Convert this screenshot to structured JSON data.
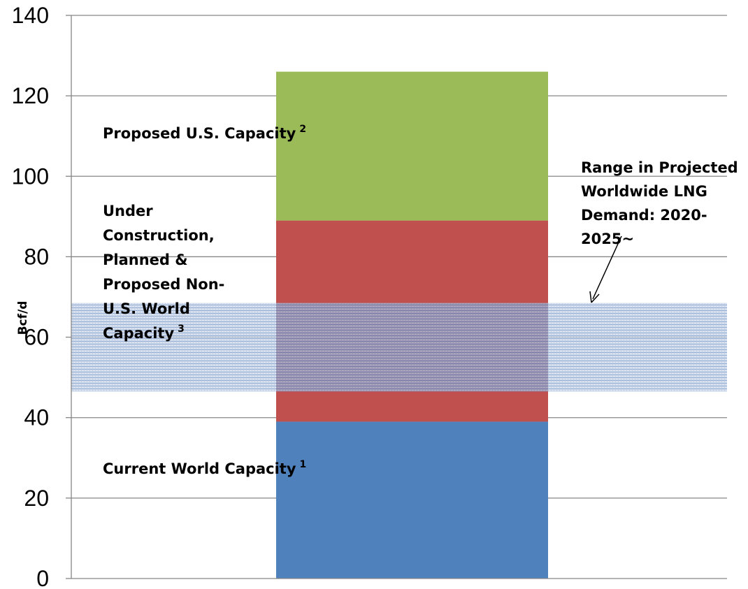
{
  "chart_data": {
    "type": "bar",
    "stacked": true,
    "ylabel": "Bcf/d",
    "ylim": [
      0,
      140
    ],
    "yticks": [
      0,
      20,
      40,
      60,
      80,
      100,
      120,
      140
    ],
    "grid": true,
    "segments": [
      {
        "label": "Current World Capacity",
        "footnote": "1",
        "value": 39,
        "color": "#4F81BD"
      },
      {
        "label": "Under Construction, Planned & Proposed Non-U.S. World Capacity",
        "label_lines": [
          "Under",
          "Construction,",
          "Planned &",
          "Proposed Non-",
          "U.S. World",
          "Capacity"
        ],
        "footnote": "3",
        "value": 50,
        "color": "#C0504D"
      },
      {
        "label": "Proposed U.S. Capacity",
        "footnote": "2",
        "value": 37,
        "color": "#9BBB59"
      }
    ],
    "demand_range": {
      "label": "Range in Projected Worldwide LNG Demand: 2020-2025~",
      "label_lines": [
        "Range in Projected",
        "Worldwide LNG",
        "Demand: 2020-",
        "2025~"
      ],
      "low": 46.5,
      "high": 68.5,
      "color": "#1F4E9A"
    }
  }
}
